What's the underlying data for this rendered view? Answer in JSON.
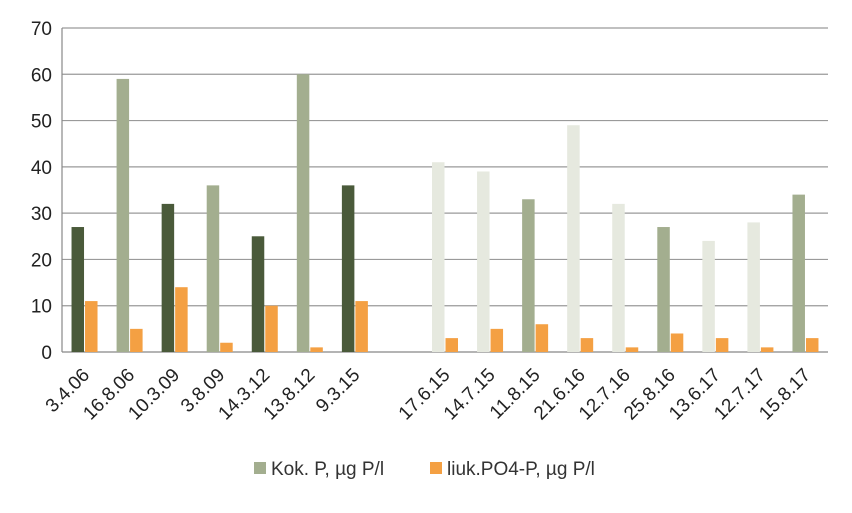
{
  "chart_data": {
    "type": "bar",
    "categories": [
      "3.4.06",
      "16.8.06",
      "10.3.09",
      "3.8.09",
      "14.3.12",
      "13.8.12",
      "9.3.15",
      "",
      "17.6.15",
      "14.7.15",
      "11.8.15",
      "21.6.16",
      "12.7.16",
      "25.8.16",
      "13.6.17",
      "12.7.17",
      "15.8.17"
    ],
    "series": [
      {
        "name": "Kok. P, µg P/l",
        "values": [
          27,
          59,
          32,
          36,
          25,
          60,
          36,
          null,
          41,
          39,
          33,
          49,
          32,
          27,
          24,
          28,
          34
        ],
        "bar_colors": [
          "#4a5a3a",
          "#a3ae8f",
          "#4a5a3a",
          "#a3ae8f",
          "#4a5a3a",
          "#a3ae8f",
          "#4a5a3a",
          "#a3ae8f",
          "#e6e9df",
          "#e6e9df",
          "#a3ae8f",
          "#e6e9df",
          "#e6e9df",
          "#a3ae8f",
          "#e6e9df",
          "#e6e9df",
          "#a3ae8f"
        ]
      },
      {
        "name": "liuk.PO4-P, µg P/l",
        "values": [
          11,
          5,
          14,
          2,
          10,
          1,
          11,
          null,
          3,
          5,
          6,
          3,
          1,
          4,
          3,
          1,
          3
        ],
        "color": "#f4a043"
      }
    ],
    "title": "",
    "xlabel": "",
    "ylabel": "",
    "ylim": [
      0,
      70
    ],
    "yticks": [
      0,
      10,
      20,
      30,
      40,
      50,
      60,
      70
    ],
    "grid": true,
    "legend": "bottom",
    "legend_swatch_color": "#a3ae8f"
  }
}
